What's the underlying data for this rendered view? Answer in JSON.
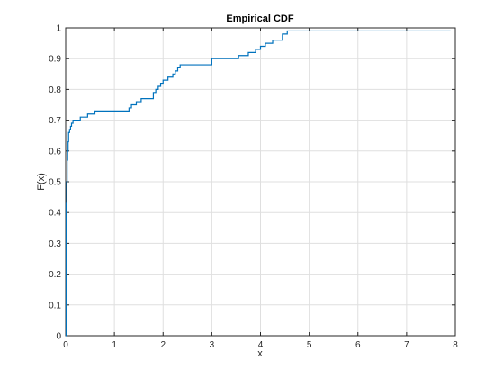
{
  "chart_data": {
    "type": "line",
    "title": "Empirical CDF",
    "xlabel": "x",
    "ylabel": "F(x)",
    "xlim": [
      0,
      8
    ],
    "ylim": [
      0,
      1
    ],
    "xticks": [
      "0",
      "1",
      "2",
      "3",
      "4",
      "5",
      "6",
      "7",
      "8"
    ],
    "yticks": [
      "0",
      "0.1",
      "0.2",
      "0.3",
      "0.4",
      "0.5",
      "0.6",
      "0.7",
      "0.8",
      "0.9",
      "1"
    ],
    "grid": true,
    "colors": {
      "line": "#0072bd",
      "grid": "#dfdfdf",
      "axes": "#262626"
    },
    "series": [
      {
        "step": true,
        "x": [
          0,
          0.01,
          0.02,
          0.03,
          0.04,
          0.05,
          0.06,
          0.08,
          0.1,
          0.12,
          0.15,
          0.2,
          0.3,
          0.45,
          0.6,
          1.2,
          1.3,
          1.35,
          1.45,
          1.55,
          1.8,
          1.85,
          1.9,
          1.95,
          2.0,
          2.05,
          2.1,
          2.2,
          2.25,
          2.3,
          2.35,
          2.95,
          3.0,
          3.3,
          3.55,
          3.75,
          3.9,
          4.0,
          4.1,
          4.25,
          4.45,
          4.55,
          7.0,
          7.9
        ],
        "y": [
          0.0,
          0.43,
          0.5,
          0.57,
          0.6,
          0.63,
          0.66,
          0.67,
          0.68,
          0.69,
          0.7,
          0.7,
          0.71,
          0.72,
          0.73,
          0.73,
          0.74,
          0.75,
          0.76,
          0.77,
          0.79,
          0.8,
          0.81,
          0.82,
          0.83,
          0.83,
          0.84,
          0.85,
          0.86,
          0.87,
          0.88,
          0.88,
          0.9,
          0.9,
          0.91,
          0.92,
          0.93,
          0.94,
          0.95,
          0.96,
          0.98,
          0.99,
          0.99,
          0.99
        ]
      }
    ]
  }
}
